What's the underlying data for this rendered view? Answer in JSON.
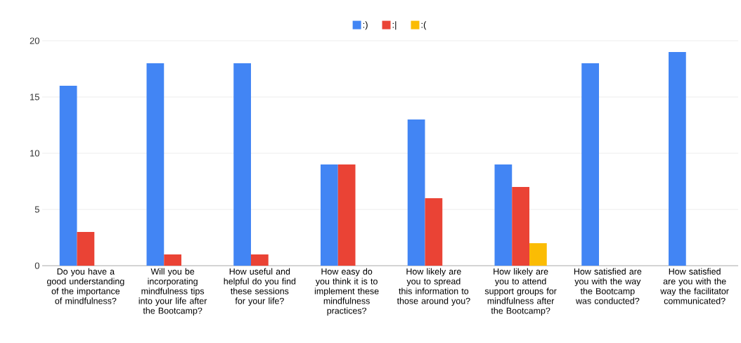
{
  "chart_data": {
    "type": "bar",
    "categories": [
      "Do you have a good understanding of the importance of mindfulness?",
      "Will you be incorporating mindfulness tips into your life after the Bootcamp?",
      "How useful and helpful do you find these sessions for your life?",
      "How easy do you think it is to implement these mindfulness practices?",
      "How likely are you to spread this information to those around you?",
      "How likely are you to attend support groups for mindfulness after the Bootcamp?",
      "How satisfied are you with the way the Bootcamp was conducted?",
      "How satisfied are you with the way the facilitator communicated?"
    ],
    "series": [
      {
        "name": ":)",
        "color": "#4285f4",
        "values": [
          16,
          18,
          18,
          9,
          13,
          9,
          18,
          19
        ]
      },
      {
        "name": ":|",
        "color": "#ea4335",
        "values": [
          3,
          1,
          1,
          9,
          6,
          7,
          0,
          0
        ]
      },
      {
        "name": ":(",
        "color": "#fbbc04",
        "values": [
          0,
          0,
          0,
          0,
          0,
          2,
          0,
          0
        ]
      }
    ],
    "ylim": [
      0,
      20
    ],
    "yticks": [
      0,
      5,
      10,
      15,
      20
    ],
    "grid": "y",
    "legend": "top"
  }
}
